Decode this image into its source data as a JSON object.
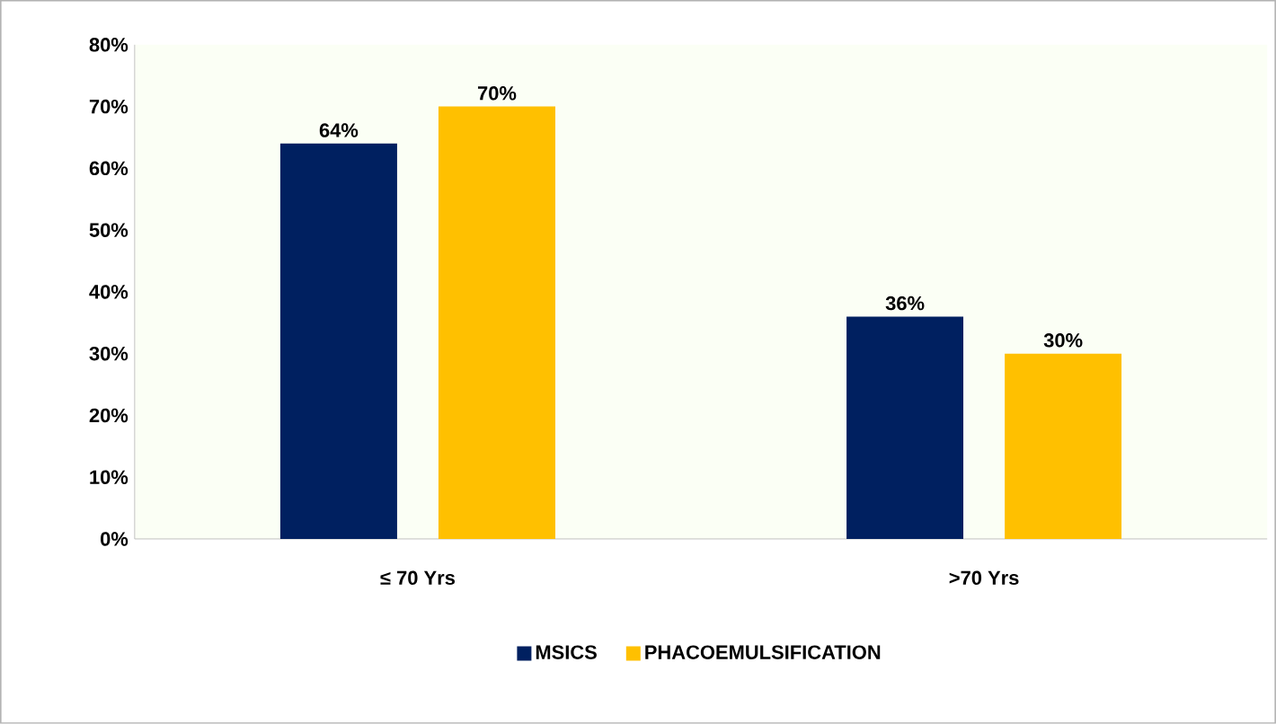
{
  "chart_data": {
    "type": "bar",
    "categories": [
      "≤ 70 Yrs",
      ">70 Yrs"
    ],
    "series": [
      {
        "name": "MSICS",
        "color": "#002060",
        "values": [
          64,
          36
        ],
        "value_labels": [
          "64%",
          "36%"
        ]
      },
      {
        "name": "PHACOEMULSIFICATION",
        "color": "#ffc000",
        "values": [
          70,
          30
        ],
        "value_labels": [
          "70%",
          "30%"
        ]
      }
    ],
    "ylim": [
      0,
      80
    ],
    "yticks": [
      {
        "value": 0,
        "label": "0%"
      },
      {
        "value": 10,
        "label": "10%"
      },
      {
        "value": 20,
        "label": "20%"
      },
      {
        "value": 30,
        "label": "30%"
      },
      {
        "value": 40,
        "label": "40%"
      },
      {
        "value": 50,
        "label": "50%"
      },
      {
        "value": 60,
        "label": "60%"
      },
      {
        "value": 70,
        "label": "70%"
      },
      {
        "value": 80,
        "label": "80%"
      }
    ],
    "legend": "bottom",
    "grid": false
  }
}
